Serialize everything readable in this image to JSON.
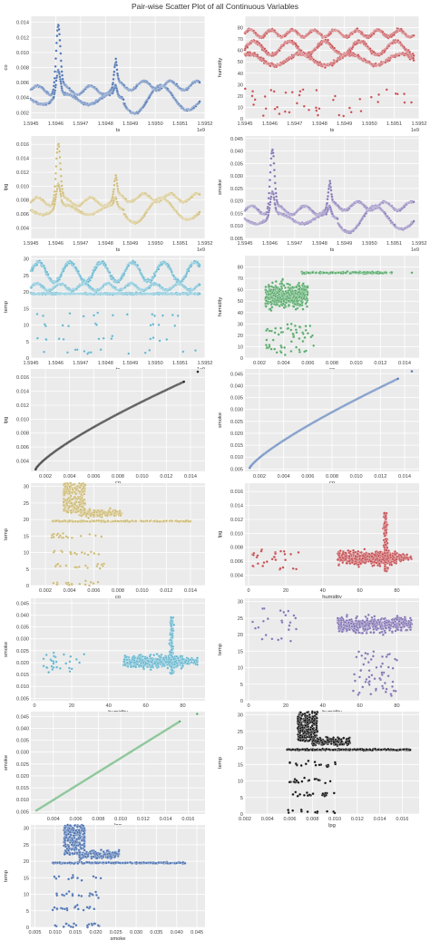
{
  "figure": {
    "title": "Pair-wise Scatter Plot of all Continuous Variables"
  },
  "chart_data": [
    {
      "type": "scatter",
      "xlabel": "ts",
      "ylabel": "co",
      "color": "#4c72b0",
      "xlim": [
        1.5945,
        1.5952
      ],
      "ylim": [
        0.0012,
        0.0148
      ],
      "xticks": [
        "1.5945",
        "1.5946",
        "1.5947",
        "1.5948",
        "1.5949",
        "1.5950",
        "1.5951",
        "1.5952"
      ],
      "yticks": [
        "0.002",
        "0.004",
        "0.006",
        "0.008",
        "0.010",
        "0.012",
        "0.014"
      ],
      "x_offset_label": "1e9",
      "pattern": "ts_co"
    },
    {
      "type": "scatter",
      "xlabel": "ts",
      "ylabel": "humidity",
      "color": "#c44e52",
      "xlim": [
        1.5945,
        1.5952
      ],
      "ylim": [
        0,
        90
      ],
      "xticks": [
        "1.5945",
        "1.5946",
        "1.5947",
        "1.5948",
        "1.5949",
        "1.5950",
        "1.5951",
        "1.5952"
      ],
      "yticks": [
        "0",
        "10",
        "20",
        "30",
        "40",
        "50",
        "60",
        "70",
        "80"
      ],
      "x_offset_label": "1e9",
      "pattern": "ts_humidity"
    },
    {
      "type": "scatter",
      "xlabel": "ts",
      "ylabel": "lpg",
      "color": "#ccb974",
      "xlim": [
        1.5945,
        1.5952
      ],
      "ylim": [
        0.0025,
        0.0172
      ],
      "xticks": [
        "1.5945",
        "1.5946",
        "1.5947",
        "1.5948",
        "1.5949",
        "1.5950",
        "1.5951",
        "1.5952"
      ],
      "yticks": [
        "0.004",
        "0.006",
        "0.008",
        "0.010",
        "0.012",
        "0.014",
        "0.016"
      ],
      "x_offset_label": "1e9",
      "pattern": "ts_lpg"
    },
    {
      "type": "scatter",
      "xlabel": "ts",
      "ylabel": "smoke",
      "color": "#8172b2",
      "xlim": [
        1.5945,
        1.5952
      ],
      "ylim": [
        0.005,
        0.046
      ],
      "xticks": [
        "1.5945",
        "1.5946",
        "1.5947",
        "1.5948",
        "1.5949",
        "1.5950",
        "1.5951",
        "1.5952"
      ],
      "yticks": [
        "0.005",
        "0.010",
        "0.015",
        "0.020",
        "0.025",
        "0.030",
        "0.035",
        "0.040",
        "0.045"
      ],
      "x_offset_label": "1e9",
      "pattern": "ts_smoke"
    },
    {
      "type": "scatter",
      "xlabel": "ts",
      "ylabel": "temp",
      "color": "#64b5cd",
      "xlim": [
        1.5945,
        1.5952
      ],
      "ylim": [
        0,
        31
      ],
      "xticks": [
        "1.5945",
        "1.5946",
        "1.5947",
        "1.5948",
        "1.5949",
        "1.5950",
        "1.5951",
        "1.5952"
      ],
      "yticks": [
        "0",
        "5",
        "10",
        "15",
        "20",
        "25",
        "30"
      ],
      "x_offset_label": "1e9",
      "pattern": "ts_temp"
    },
    {
      "type": "scatter",
      "xlabel": "co",
      "ylabel": "humidity",
      "color": "#55a868",
      "xlim": [
        0.0008,
        0.0152
      ],
      "ylim": [
        0,
        90
      ],
      "xticks": [
        "0.002",
        "0.004",
        "0.006",
        "0.008",
        "0.010",
        "0.012",
        "0.014"
      ],
      "yticks": [
        "0",
        "10",
        "20",
        "30",
        "40",
        "50",
        "60",
        "70",
        "80"
      ],
      "pattern": "co_humidity"
    },
    {
      "type": "scatter",
      "xlabel": "co",
      "ylabel": "lpg",
      "color": "#111111",
      "xlim": [
        0.0008,
        0.0152
      ],
      "ylim": [
        0.0025,
        0.0172
      ],
      "xticks": [
        "0.002",
        "0.004",
        "0.006",
        "0.008",
        "0.010",
        "0.012",
        "0.014"
      ],
      "yticks": [
        "0.004",
        "0.006",
        "0.008",
        "0.010",
        "0.012",
        "0.014",
        "0.016"
      ],
      "pattern": "co_lpg"
    },
    {
      "type": "scatter",
      "xlabel": "co",
      "ylabel": "smoke",
      "color": "#4c72b0",
      "xlim": [
        0.0008,
        0.0152
      ],
      "ylim": [
        0.004,
        0.047
      ],
      "xticks": [
        "0.002",
        "0.004",
        "0.006",
        "0.008",
        "0.010",
        "0.012",
        "0.014"
      ],
      "yticks": [
        "0.005",
        "0.010",
        "0.015",
        "0.020",
        "0.025",
        "0.030",
        "0.035",
        "0.040",
        "0.045"
      ],
      "pattern": "co_smoke"
    },
    {
      "type": "scatter",
      "xlabel": "co",
      "ylabel": "temp",
      "color": "#ccb974",
      "xlim": [
        0.0008,
        0.0152
      ],
      "ylim": [
        0,
        31
      ],
      "xticks": [
        "0.002",
        "0.004",
        "0.006",
        "0.008",
        "0.010",
        "0.012",
        "0.014"
      ],
      "yticks": [
        "0",
        "5",
        "10",
        "15",
        "20",
        "25",
        "30"
      ],
      "pattern": "co_temp"
    },
    {
      "type": "scatter",
      "xlabel": "humidity",
      "ylabel": "lpg",
      "color": "#c44e52",
      "xlim": [
        -2,
        92
      ],
      "ylim": [
        0.0025,
        0.0172
      ],
      "xticks": [
        "0",
        "20",
        "40",
        "60",
        "80"
      ],
      "yticks": [
        "0.004",
        "0.006",
        "0.008",
        "0.010",
        "0.012",
        "0.014",
        "0.016"
      ],
      "pattern": "humidity_lpg"
    },
    {
      "type": "scatter",
      "xlabel": "humidity",
      "ylabel": "smoke",
      "color": "#64b5cd",
      "xlim": [
        -2,
        92
      ],
      "ylim": [
        0.004,
        0.047
      ],
      "xticks": [
        "0",
        "20",
        "40",
        "60",
        "80"
      ],
      "yticks": [
        "0.005",
        "0.010",
        "0.015",
        "0.020",
        "0.025",
        "0.030",
        "0.035",
        "0.040",
        "0.045"
      ],
      "pattern": "humidity_smoke"
    },
    {
      "type": "scatter",
      "xlabel": "humidity",
      "ylabel": "temp",
      "color": "#8172b2",
      "xlim": [
        -2,
        92
      ],
      "ylim": [
        0,
        31
      ],
      "xticks": [
        "0",
        "20",
        "40",
        "60",
        "80"
      ],
      "yticks": [
        "0",
        "5",
        "10",
        "15",
        "20",
        "25",
        "30"
      ],
      "pattern": "humidity_temp"
    },
    {
      "type": "scatter",
      "xlabel": "lpg",
      "ylabel": "smoke",
      "color": "#55a868",
      "xlim": [
        0.002,
        0.0175
      ],
      "ylim": [
        0.004,
        0.047
      ],
      "xticks": [
        "0.004",
        "0.006",
        "0.008",
        "0.010",
        "0.012",
        "0.014",
        "0.016"
      ],
      "yticks": [
        "0.005",
        "0.010",
        "0.015",
        "0.020",
        "0.025",
        "0.030",
        "0.035",
        "0.040",
        "0.045"
      ],
      "pattern": "lpg_smoke"
    },
    {
      "type": "scatter",
      "xlabel": "lpg",
      "ylabel": "temp",
      "color": "#111111",
      "xlim": [
        0.002,
        0.0175
      ],
      "ylim": [
        0,
        31
      ],
      "xticks": [
        "0.002",
        "0.004",
        "0.006",
        "0.008",
        "0.010",
        "0.012",
        "0.014",
        "0.016"
      ],
      "yticks": [
        "0",
        "5",
        "10",
        "15",
        "20",
        "25",
        "30"
      ],
      "pattern": "lpg_temp"
    },
    {
      "type": "scatter",
      "xlabel": "smoke",
      "ylabel": "temp",
      "color": "#4c72b0",
      "xlim": [
        0.004,
        0.047
      ],
      "ylim": [
        0,
        31
      ],
      "xticks": [
        "0.005",
        "0.010",
        "0.015",
        "0.020",
        "0.025",
        "0.030",
        "0.035",
        "0.040",
        "0.045"
      ],
      "yticks": [
        "0",
        "5",
        "10",
        "15",
        "20",
        "25",
        "30"
      ],
      "pattern": "smoke_temp"
    }
  ]
}
